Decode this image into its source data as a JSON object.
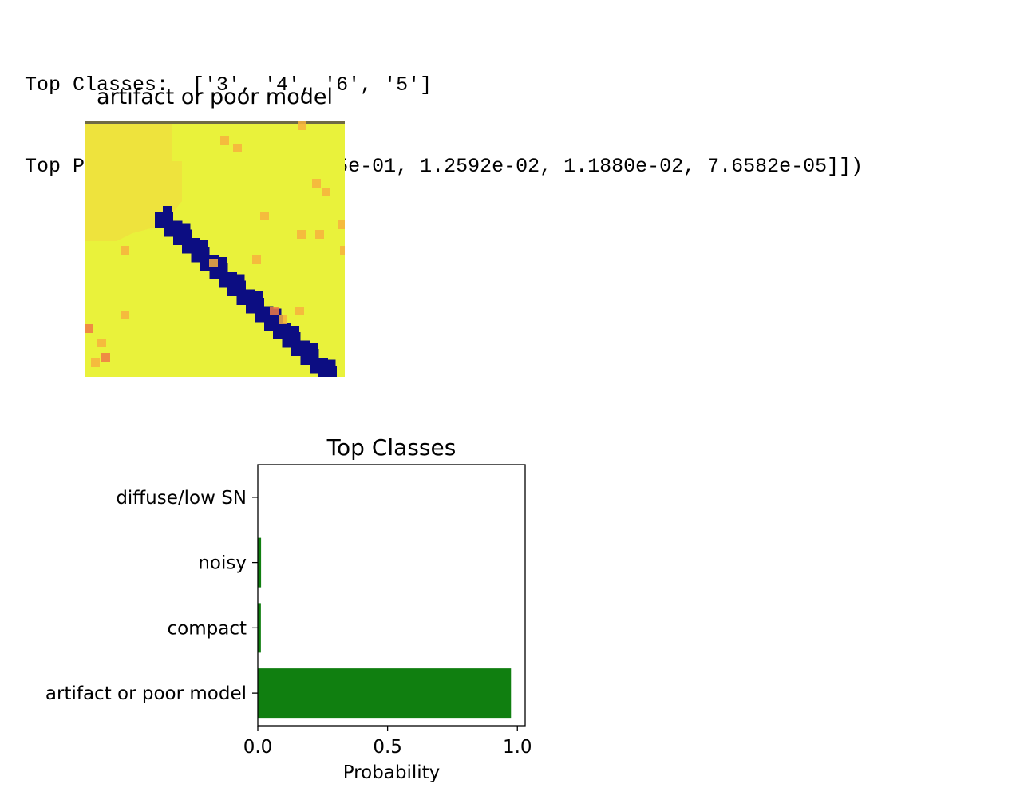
{
  "console": {
    "line1": "Top Classes:  ['3', '4', '6', '5']",
    "line2": "Top Probs:  tensor([[9.7545e-01, 1.2592e-02, 1.1880e-02, 7.6582e-05]])"
  },
  "image_panel": {
    "title": "artifact or poor model",
    "colors": {
      "background": "#e9f23b",
      "upper_region": "#eee33d",
      "streak": "#0c0d82",
      "speck_orange": "#f7b23e",
      "speck_red": "#f07a45"
    }
  },
  "chart_data": {
    "type": "bar",
    "orientation": "horizontal",
    "title": "Top Classes",
    "xlabel": "Probability",
    "ylabel": "",
    "categories": [
      "artifact or poor model",
      "compact",
      "noisy",
      "diffuse/low SN"
    ],
    "values": [
      0.97545,
      0.01188,
      0.012592,
      7.6582e-05
    ],
    "xlim": [
      0,
      1.03
    ],
    "xticks": [
      0.0,
      0.5,
      1.0
    ],
    "xtick_labels": [
      "0.0",
      "0.5",
      "1.0"
    ],
    "bar_color": "#107f10",
    "grid": false
  }
}
